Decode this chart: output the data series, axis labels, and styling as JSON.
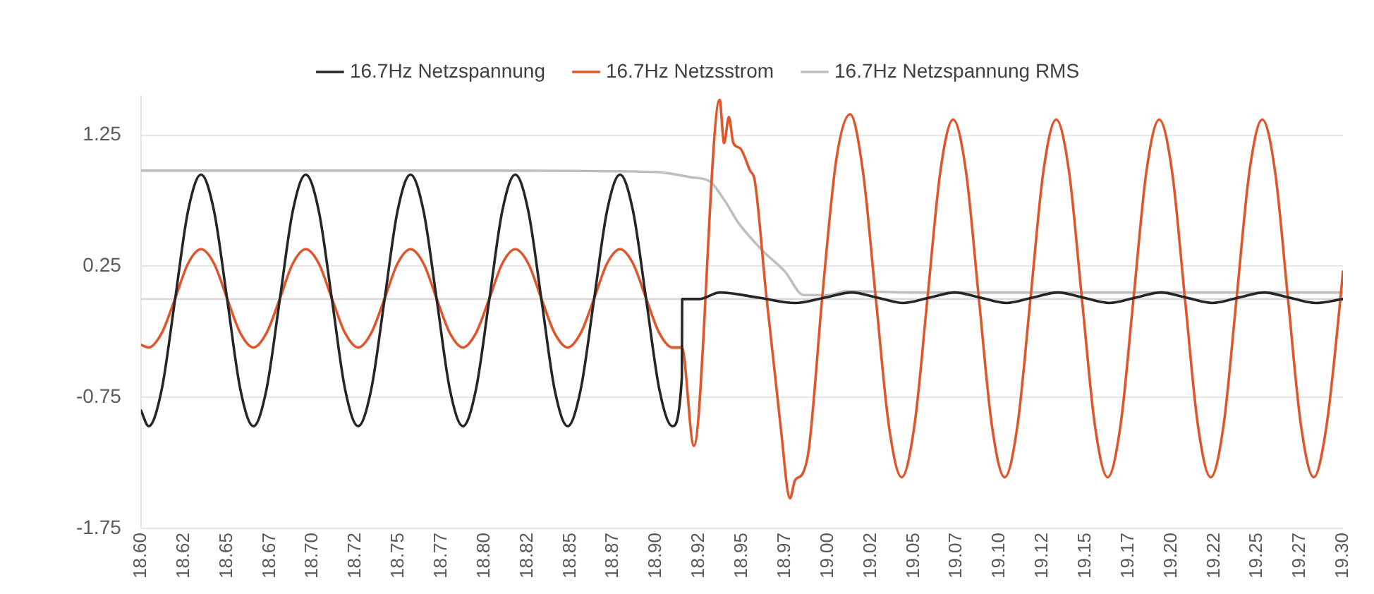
{
  "chart_data": {
    "type": "line",
    "legend": "top",
    "grid": "y",
    "marker": "none",
    "line_style": "solid",
    "xlim": [
      18.6,
      19.3
    ],
    "xticks": [
      {
        "value": 18.6,
        "label": "18.60"
      },
      {
        "value": 18.625,
        "label": "18.62"
      },
      {
        "value": 18.65,
        "label": "18.65"
      },
      {
        "value": 18.675,
        "label": "18.67"
      },
      {
        "value": 18.7,
        "label": "18.70"
      },
      {
        "value": 18.725,
        "label": "18.72"
      },
      {
        "value": 18.75,
        "label": "18.75"
      },
      {
        "value": 18.775,
        "label": "18.77"
      },
      {
        "value": 18.8,
        "label": "18.80"
      },
      {
        "value": 18.825,
        "label": "18.82"
      },
      {
        "value": 18.85,
        "label": "18.85"
      },
      {
        "value": 18.875,
        "label": "18.87"
      },
      {
        "value": 18.9,
        "label": "18.90"
      },
      {
        "value": 18.925,
        "label": "18.92"
      },
      {
        "value": 18.95,
        "label": "18.95"
      },
      {
        "value": 18.975,
        "label": "18.97"
      },
      {
        "value": 19.0,
        "label": "19.00"
      },
      {
        "value": 19.025,
        "label": "19.02"
      },
      {
        "value": 19.05,
        "label": "19.05"
      },
      {
        "value": 19.075,
        "label": "19.07"
      },
      {
        "value": 19.1,
        "label": "19.10"
      },
      {
        "value": 19.125,
        "label": "19.12"
      },
      {
        "value": 19.15,
        "label": "19.15"
      },
      {
        "value": 19.175,
        "label": "19.17"
      },
      {
        "value": 19.2,
        "label": "19.20"
      },
      {
        "value": 19.225,
        "label": "19.22"
      },
      {
        "value": 19.25,
        "label": "19.25"
      },
      {
        "value": 19.275,
        "label": "19.27"
      },
      {
        "value": 19.3,
        "label": "19.30"
      }
    ],
    "ylim": [
      -1.75,
      1.55
    ],
    "yticks": [
      -1.75,
      -0.75,
      0.25,
      1.25
    ],
    "ref_lines": [
      {
        "axis": "y",
        "value": 0,
        "color": "#d9d9d9"
      }
    ],
    "series": [
      {
        "name": "16.7Hz Netzspannung",
        "color": "#262626",
        "x": [
          18.6,
          18.6045,
          18.6121,
          18.6198,
          18.6274,
          18.635,
          18.6426,
          18.6503,
          18.6579,
          18.6655,
          18.6731,
          18.6808,
          18.6884,
          18.696,
          18.7036,
          18.7113,
          18.7189,
          18.7265,
          18.7341,
          18.7418,
          18.7494,
          18.757,
          18.7646,
          18.7723,
          18.7799,
          18.7875,
          18.7951,
          18.8028,
          18.8104,
          18.818,
          18.8256,
          18.8333,
          18.8409,
          18.8485,
          18.8561,
          18.8638,
          18.8714,
          18.879,
          18.8866,
          18.8943,
          18.9019,
          18.9095,
          18.915,
          18.9152,
          18.925,
          18.937,
          18.96,
          18.981,
          18.998,
          19.014,
          19.029,
          19.044,
          19.059,
          19.074,
          19.089,
          19.104,
          19.119,
          19.134,
          19.149,
          19.164,
          19.179,
          19.194,
          19.209,
          19.224,
          19.239,
          19.254,
          19.269,
          19.284,
          19.3
        ],
        "values": [
          -0.85,
          -0.97,
          -0.69,
          -0.01,
          0.67,
          0.95,
          0.67,
          -0.01,
          -0.69,
          -0.97,
          -0.69,
          -0.01,
          0.67,
          0.95,
          0.67,
          -0.01,
          -0.69,
          -0.97,
          -0.69,
          -0.01,
          0.67,
          0.95,
          0.67,
          -0.01,
          -0.69,
          -0.97,
          -0.69,
          -0.01,
          0.67,
          0.95,
          0.67,
          -0.01,
          -0.69,
          -0.97,
          -0.69,
          -0.01,
          0.67,
          0.95,
          0.67,
          -0.01,
          -0.69,
          -0.97,
          -0.6,
          0.0,
          0.0,
          0.05,
          0.01,
          -0.03,
          0.01,
          0.05,
          0.01,
          -0.03,
          0.01,
          0.05,
          0.01,
          -0.03,
          0.01,
          0.05,
          0.01,
          -0.03,
          0.01,
          0.05,
          0.01,
          -0.03,
          0.01,
          0.05,
          0.01,
          -0.03,
          0.0
        ]
      },
      {
        "name": "16.7Hz Netzsstrom",
        "color": "#e0562b",
        "x": [
          18.6,
          18.6045,
          18.6121,
          18.6198,
          18.6274,
          18.635,
          18.6426,
          18.6503,
          18.6579,
          18.6655,
          18.6731,
          18.6808,
          18.6884,
          18.696,
          18.7036,
          18.7113,
          18.7189,
          18.7265,
          18.7341,
          18.7418,
          18.7494,
          18.757,
          18.7646,
          18.7723,
          18.7799,
          18.7875,
          18.7951,
          18.8028,
          18.8104,
          18.818,
          18.8256,
          18.8333,
          18.8409,
          18.8485,
          18.8561,
          18.8638,
          18.8714,
          18.879,
          18.8866,
          18.8943,
          18.9019,
          18.9095,
          18.915,
          18.922,
          18.937,
          18.9396,
          18.9424,
          18.945,
          18.949,
          18.9547,
          18.9575,
          18.964,
          18.9725,
          18.978,
          18.981,
          18.985,
          18.989,
          18.997,
          19.005,
          19.013,
          19.0205,
          19.028,
          19.0355,
          19.043,
          19.0505,
          19.058,
          19.0655,
          19.073,
          19.0805,
          19.088,
          19.0955,
          19.103,
          19.1105,
          19.118,
          19.1255,
          19.133,
          19.1405,
          19.148,
          19.1555,
          19.163,
          19.1705,
          19.178,
          19.1855,
          19.193,
          19.2005,
          19.208,
          19.2155,
          19.223,
          19.2305,
          19.238,
          19.2455,
          19.253,
          19.2605,
          19.268,
          19.2755,
          19.283,
          19.2905,
          19.2985,
          19.3
        ],
        "values": [
          -0.35,
          -0.37,
          -0.26,
          0.0,
          0.27,
          0.38,
          0.27,
          0.0,
          -0.26,
          -0.37,
          -0.26,
          0.0,
          0.27,
          0.38,
          0.27,
          0.0,
          -0.26,
          -0.37,
          -0.26,
          0.0,
          0.27,
          0.38,
          0.27,
          0.0,
          -0.26,
          -0.37,
          -0.26,
          0.0,
          0.27,
          0.38,
          0.27,
          0.0,
          -0.26,
          -0.37,
          -0.26,
          0.0,
          0.27,
          0.38,
          0.27,
          0.0,
          -0.26,
          -0.37,
          -0.37,
          -1.12,
          1.52,
          1.19,
          1.39,
          1.19,
          1.15,
          0.98,
          0.9,
          0.05,
          -0.97,
          -1.52,
          -1.38,
          -1.34,
          -1.14,
          0.05,
          1.07,
          1.41,
          0.97,
          0.0,
          -0.96,
          -1.36,
          -0.96,
          0.0,
          0.97,
          1.37,
          0.97,
          0.0,
          -0.96,
          -1.36,
          -0.96,
          0.0,
          0.97,
          1.37,
          0.97,
          0.0,
          -0.96,
          -1.36,
          -0.96,
          0.0,
          0.97,
          1.37,
          0.97,
          0.0,
          -0.96,
          -1.36,
          -0.96,
          0.0,
          0.97,
          1.37,
          0.97,
          0.0,
          -0.96,
          -1.36,
          -0.96,
          0.0,
          0.21
        ]
      },
      {
        "name": "16.7Hz Netzspannung RMS",
        "color": "#bfbfbf",
        "x": [
          18.6,
          18.7,
          18.8,
          18.9,
          18.907,
          18.92,
          18.931,
          18.94,
          18.948,
          18.962,
          18.975,
          18.986,
          19.0,
          19.011,
          19.05,
          19.1,
          19.15,
          19.2,
          19.25,
          19.3
        ],
        "values": [
          0.98,
          0.98,
          0.98,
          0.97,
          0.96,
          0.93,
          0.9,
          0.75,
          0.58,
          0.37,
          0.21,
          0.03,
          0.03,
          0.06,
          0.05,
          0.05,
          0.05,
          0.05,
          0.05,
          0.05
        ]
      }
    ]
  }
}
